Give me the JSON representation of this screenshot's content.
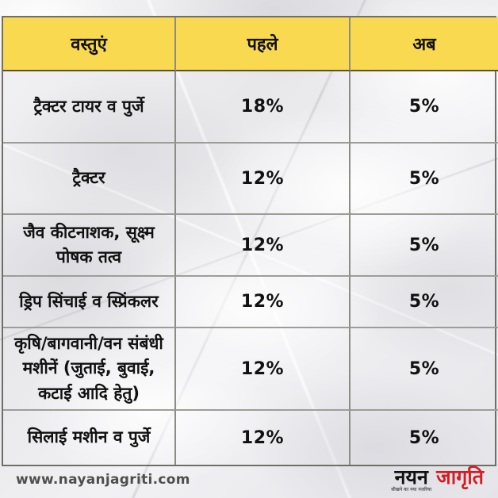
{
  "chart_data": {
    "type": "table",
    "title": "",
    "columns": [
      "वस्तुएं",
      "पहले",
      "अब"
    ],
    "rows": [
      [
        "ट्रैक्टर टायर व पुर्जे",
        "18%",
        "5%"
      ],
      [
        "ट्रैक्टर",
        "12%",
        "5%"
      ],
      [
        "जैव कीटनाशक, सूक्ष्म पोषक तत्व",
        "12%",
        "5%"
      ],
      [
        "ड्रिप सिंचाई व स्प्रिंकलर",
        "12%",
        "5%"
      ],
      [
        "कृषि/बागवानी/वन संबंधी मशीनें (जुताई, बुवाई, कटाई आदि हेतु)",
        "12%",
        "5%"
      ],
      [
        "सिलाई मशीन व पुर्जे",
        "12%",
        "5%"
      ]
    ],
    "header_bg": "#f9d950",
    "layout": "3-column comparison table on crumpled paper background"
  },
  "table": {
    "headers": {
      "items": "वस्तुएं",
      "before": "पहले",
      "now": "अब"
    },
    "rows": [
      {
        "item": "ट्रैक्टर टायर व पुर्जे",
        "before": "18%",
        "now": "5%"
      },
      {
        "item": "ट्रैक्टर",
        "before": "12%",
        "now": "5%"
      },
      {
        "item": "जैव कीटनाशक, सूक्ष्म पोषक तत्व",
        "before": "12%",
        "now": "5%"
      },
      {
        "item": "ड्रिप सिंचाई व स्प्रिंकलर",
        "before": "12%",
        "now": "5%"
      },
      {
        "item": "कृषि/बागवानी/वन संबंधी मशीनें (जुताई, बुवाई, कटाई आदि हेतु)",
        "before": "12%",
        "now": "5%"
      },
      {
        "item": "सिलाई मशीन व पुर्जे",
        "before": "12%",
        "now": "5%"
      }
    ]
  },
  "footer": {
    "website": "www.nayanjagriti.com",
    "logo": {
      "part1": "नयन",
      "part2": "जागृति",
      "tagline": "सीखने का नया नजरिया",
      "part2_color": "#d21d24"
    }
  },
  "colors": {
    "header_yellow": "#f9d950",
    "border_dark": "#6f6f67",
    "border_row": "#9d9d98",
    "text": "#111111",
    "website_text": "#4e4e4e",
    "logo_red": "#d21d24"
  }
}
